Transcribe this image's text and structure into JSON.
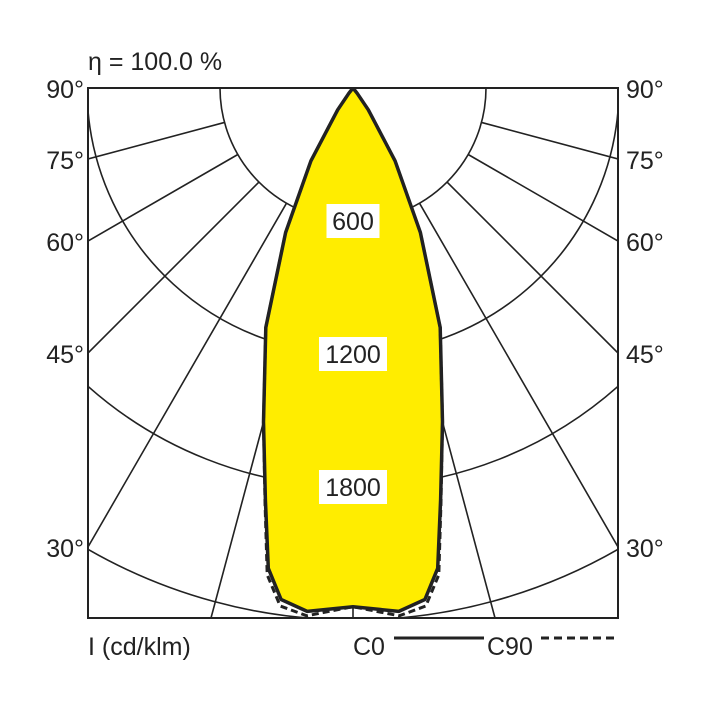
{
  "chart_data": {
    "type": "polar",
    "title": "η = 100.0 %",
    "unit_label": "I (cd/klm)",
    "radial_ticks": [
      600,
      1200,
      1800,
      2400
    ],
    "radial_tick_labels": [
      "600",
      "1200",
      "1800"
    ],
    "angle_ticks": [
      0,
      15,
      30,
      45,
      60,
      75,
      90
    ],
    "angle_labels": [
      "90°",
      "75°",
      "60°",
      "45°",
      "30°"
    ],
    "fill_color": "#ffed00",
    "series": [
      {
        "name": "C0",
        "style": "solid",
        "angles": [
          0,
          5,
          8,
          10,
          12,
          15,
          20,
          25,
          30,
          35,
          38,
          40
        ],
        "values": [
          2340,
          2370,
          2330,
          2200,
          1900,
          1560,
          1150,
          720,
          380,
          120,
          30,
          0
        ]
      },
      {
        "name": "C90",
        "style": "dashed",
        "angles": [
          0,
          5,
          8,
          10,
          12,
          15,
          20,
          25,
          30,
          35,
          38,
          40
        ],
        "values": [
          2340,
          2390,
          2360,
          2230,
          1910,
          1560,
          1150,
          720,
          380,
          120,
          30,
          0
        ]
      }
    ]
  }
}
